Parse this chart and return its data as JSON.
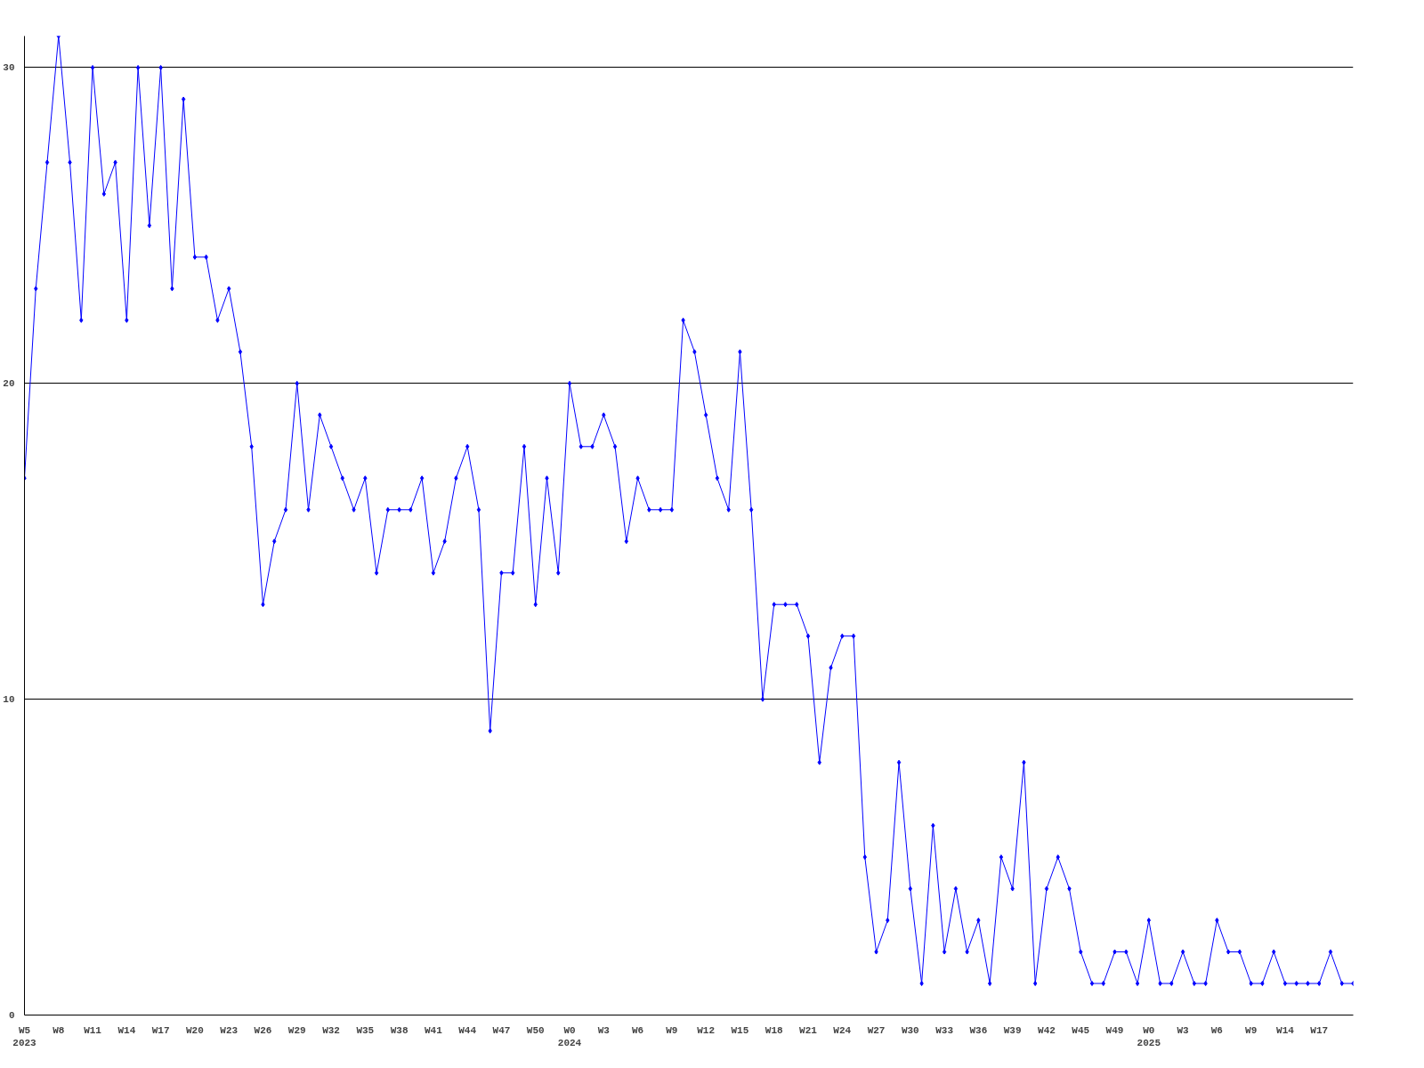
{
  "chart_data": {
    "type": "line",
    "categories": [
      "W5\n2023",
      null,
      null,
      "W8",
      null,
      null,
      "W11",
      null,
      null,
      "W14",
      null,
      null,
      "W17",
      null,
      null,
      "W20",
      null,
      null,
      "W23",
      null,
      null,
      "W26",
      null,
      null,
      "W29",
      null,
      null,
      "W32",
      null,
      null,
      "W35",
      null,
      null,
      "W38",
      null,
      null,
      "W41",
      null,
      null,
      "W44",
      null,
      null,
      "W47",
      null,
      null,
      "W50",
      null,
      null,
      "W0\n2024",
      null,
      null,
      "W3",
      null,
      null,
      "W6",
      null,
      null,
      "W9",
      null,
      null,
      "W12",
      null,
      null,
      "W15",
      null,
      null,
      "W18",
      null,
      null,
      "W21",
      null,
      null,
      "W24",
      null,
      null,
      "W27",
      null,
      null,
      "W30",
      null,
      null,
      "W33",
      null,
      null,
      "W36",
      null,
      null,
      "W39",
      null,
      null,
      "W42",
      null,
      null,
      "W45",
      null,
      null,
      "W49",
      null,
      null,
      "W0\n2025",
      null,
      null,
      "W3",
      null,
      null,
      "W6",
      null,
      null,
      "W9",
      null,
      null,
      "W14",
      null,
      null,
      "W17",
      null,
      null,
      null
    ],
    "series": [
      {
        "color": "#0000ff",
        "values": [
          17,
          23,
          27,
          31,
          27,
          22,
          30,
          26,
          27,
          22,
          30,
          25,
          30,
          23,
          29,
          24,
          24,
          22,
          23,
          21,
          18,
          13,
          15,
          16,
          20,
          16,
          19,
          18,
          17,
          16,
          17,
          14,
          16,
          16,
          16,
          17,
          14,
          15,
          17,
          18,
          16,
          9,
          14,
          14,
          18,
          13,
          17,
          14,
          20,
          18,
          18,
          19,
          18,
          15,
          17,
          16,
          16,
          16,
          22,
          21,
          19,
          17,
          16,
          21,
          16,
          10,
          13,
          13,
          13,
          12,
          8,
          11,
          12,
          12,
          5,
          2,
          3,
          8,
          4,
          1,
          6,
          2,
          4,
          2,
          3,
          1,
          5,
          4,
          8,
          1,
          4,
          5,
          4,
          2,
          1,
          1,
          2,
          2,
          1,
          3,
          1,
          1,
          2,
          1,
          1,
          3,
          2,
          2,
          1,
          1,
          2,
          1,
          1,
          1,
          1,
          2,
          1,
          1
        ]
      }
    ],
    "ylim": [
      0,
      31
    ],
    "yticks": [
      0,
      10,
      20,
      30
    ],
    "grid": "y",
    "marker": "diamond",
    "line_style": "solid"
  }
}
